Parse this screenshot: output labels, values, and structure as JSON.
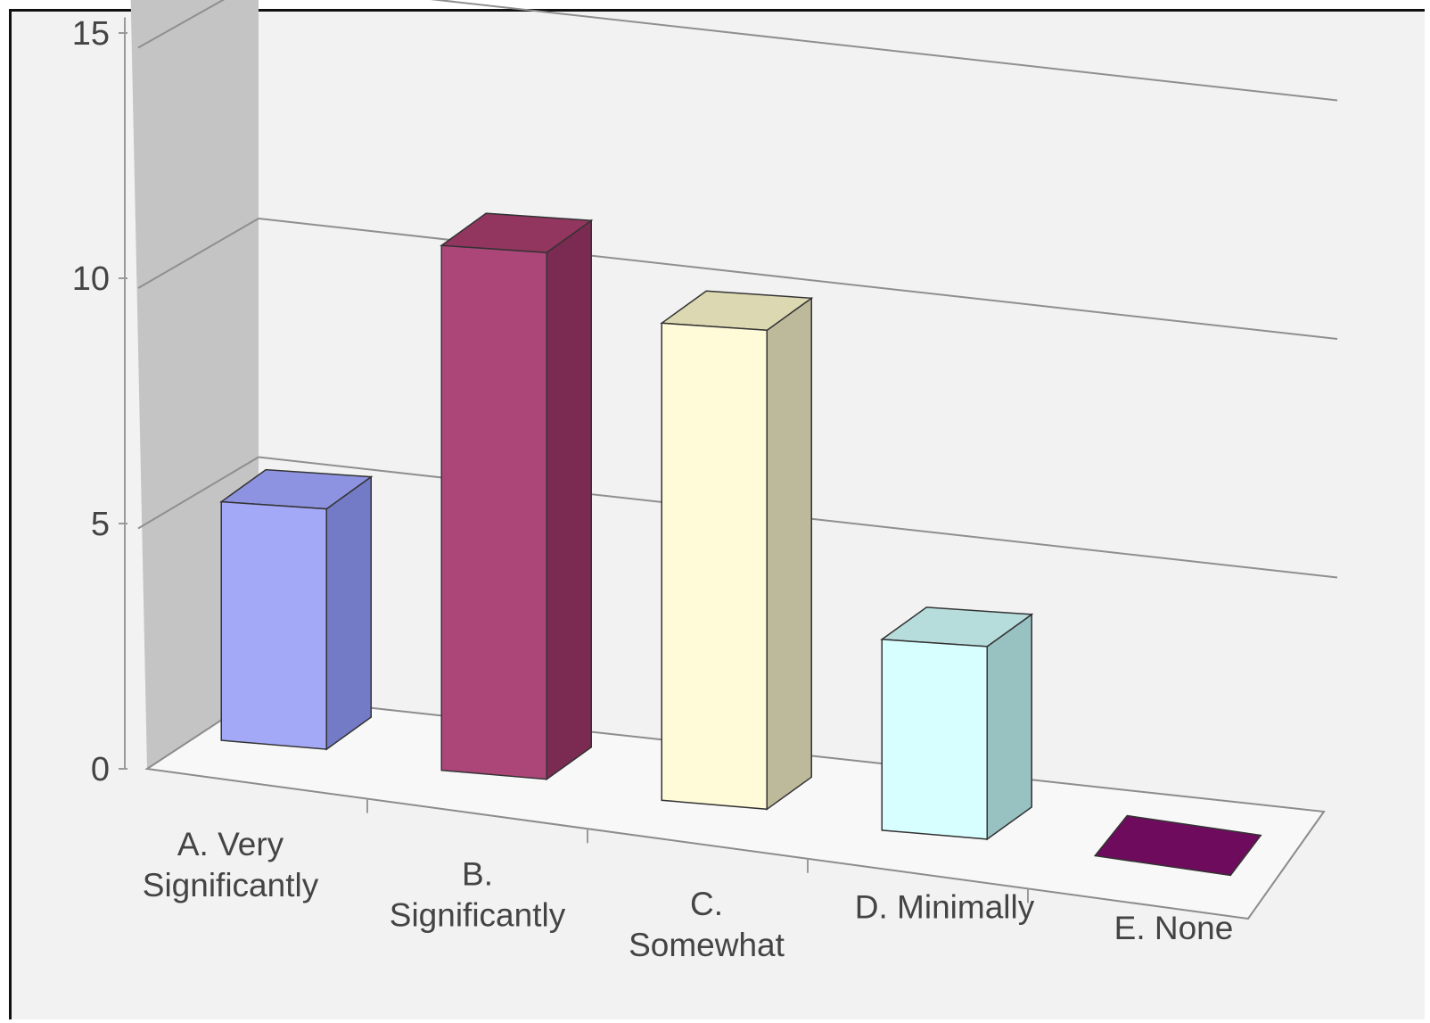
{
  "chart_data": {
    "type": "bar",
    "title": "",
    "xlabel": "",
    "ylabel": "",
    "ylim": [
      0,
      15
    ],
    "yticks": [
      "0",
      "5",
      "10",
      "15"
    ],
    "grid": true,
    "three_d": true,
    "categories": [
      {
        "lines": [
          "A. Very",
          "Significantly"
        ]
      },
      {
        "lines": [
          "B.",
          "Significantly"
        ]
      },
      {
        "lines": [
          "C.",
          "Somewhat"
        ]
      },
      {
        "lines": [
          "D. Minimally"
        ]
      },
      {
        "lines": [
          "E. None"
        ]
      }
    ],
    "values": [
      5,
      11,
      10,
      4,
      0
    ],
    "colors": [
      {
        "front": "#a4a9f7",
        "side": "#737ac6",
        "top": "#8d93e0"
      },
      {
        "front": "#ac4679",
        "side": "#7b2a52",
        "top": "#93365f"
      },
      {
        "front": "#fffbd9",
        "side": "#bdb99b",
        "top": "#dcd8b2"
      },
      {
        "front": "#d8ffff",
        "side": "#98c1c1",
        "top": "#b7dcdc"
      },
      {
        "front": "#6e0b5d",
        "side": "#500743",
        "top": "#6e0b5d"
      }
    ]
  }
}
